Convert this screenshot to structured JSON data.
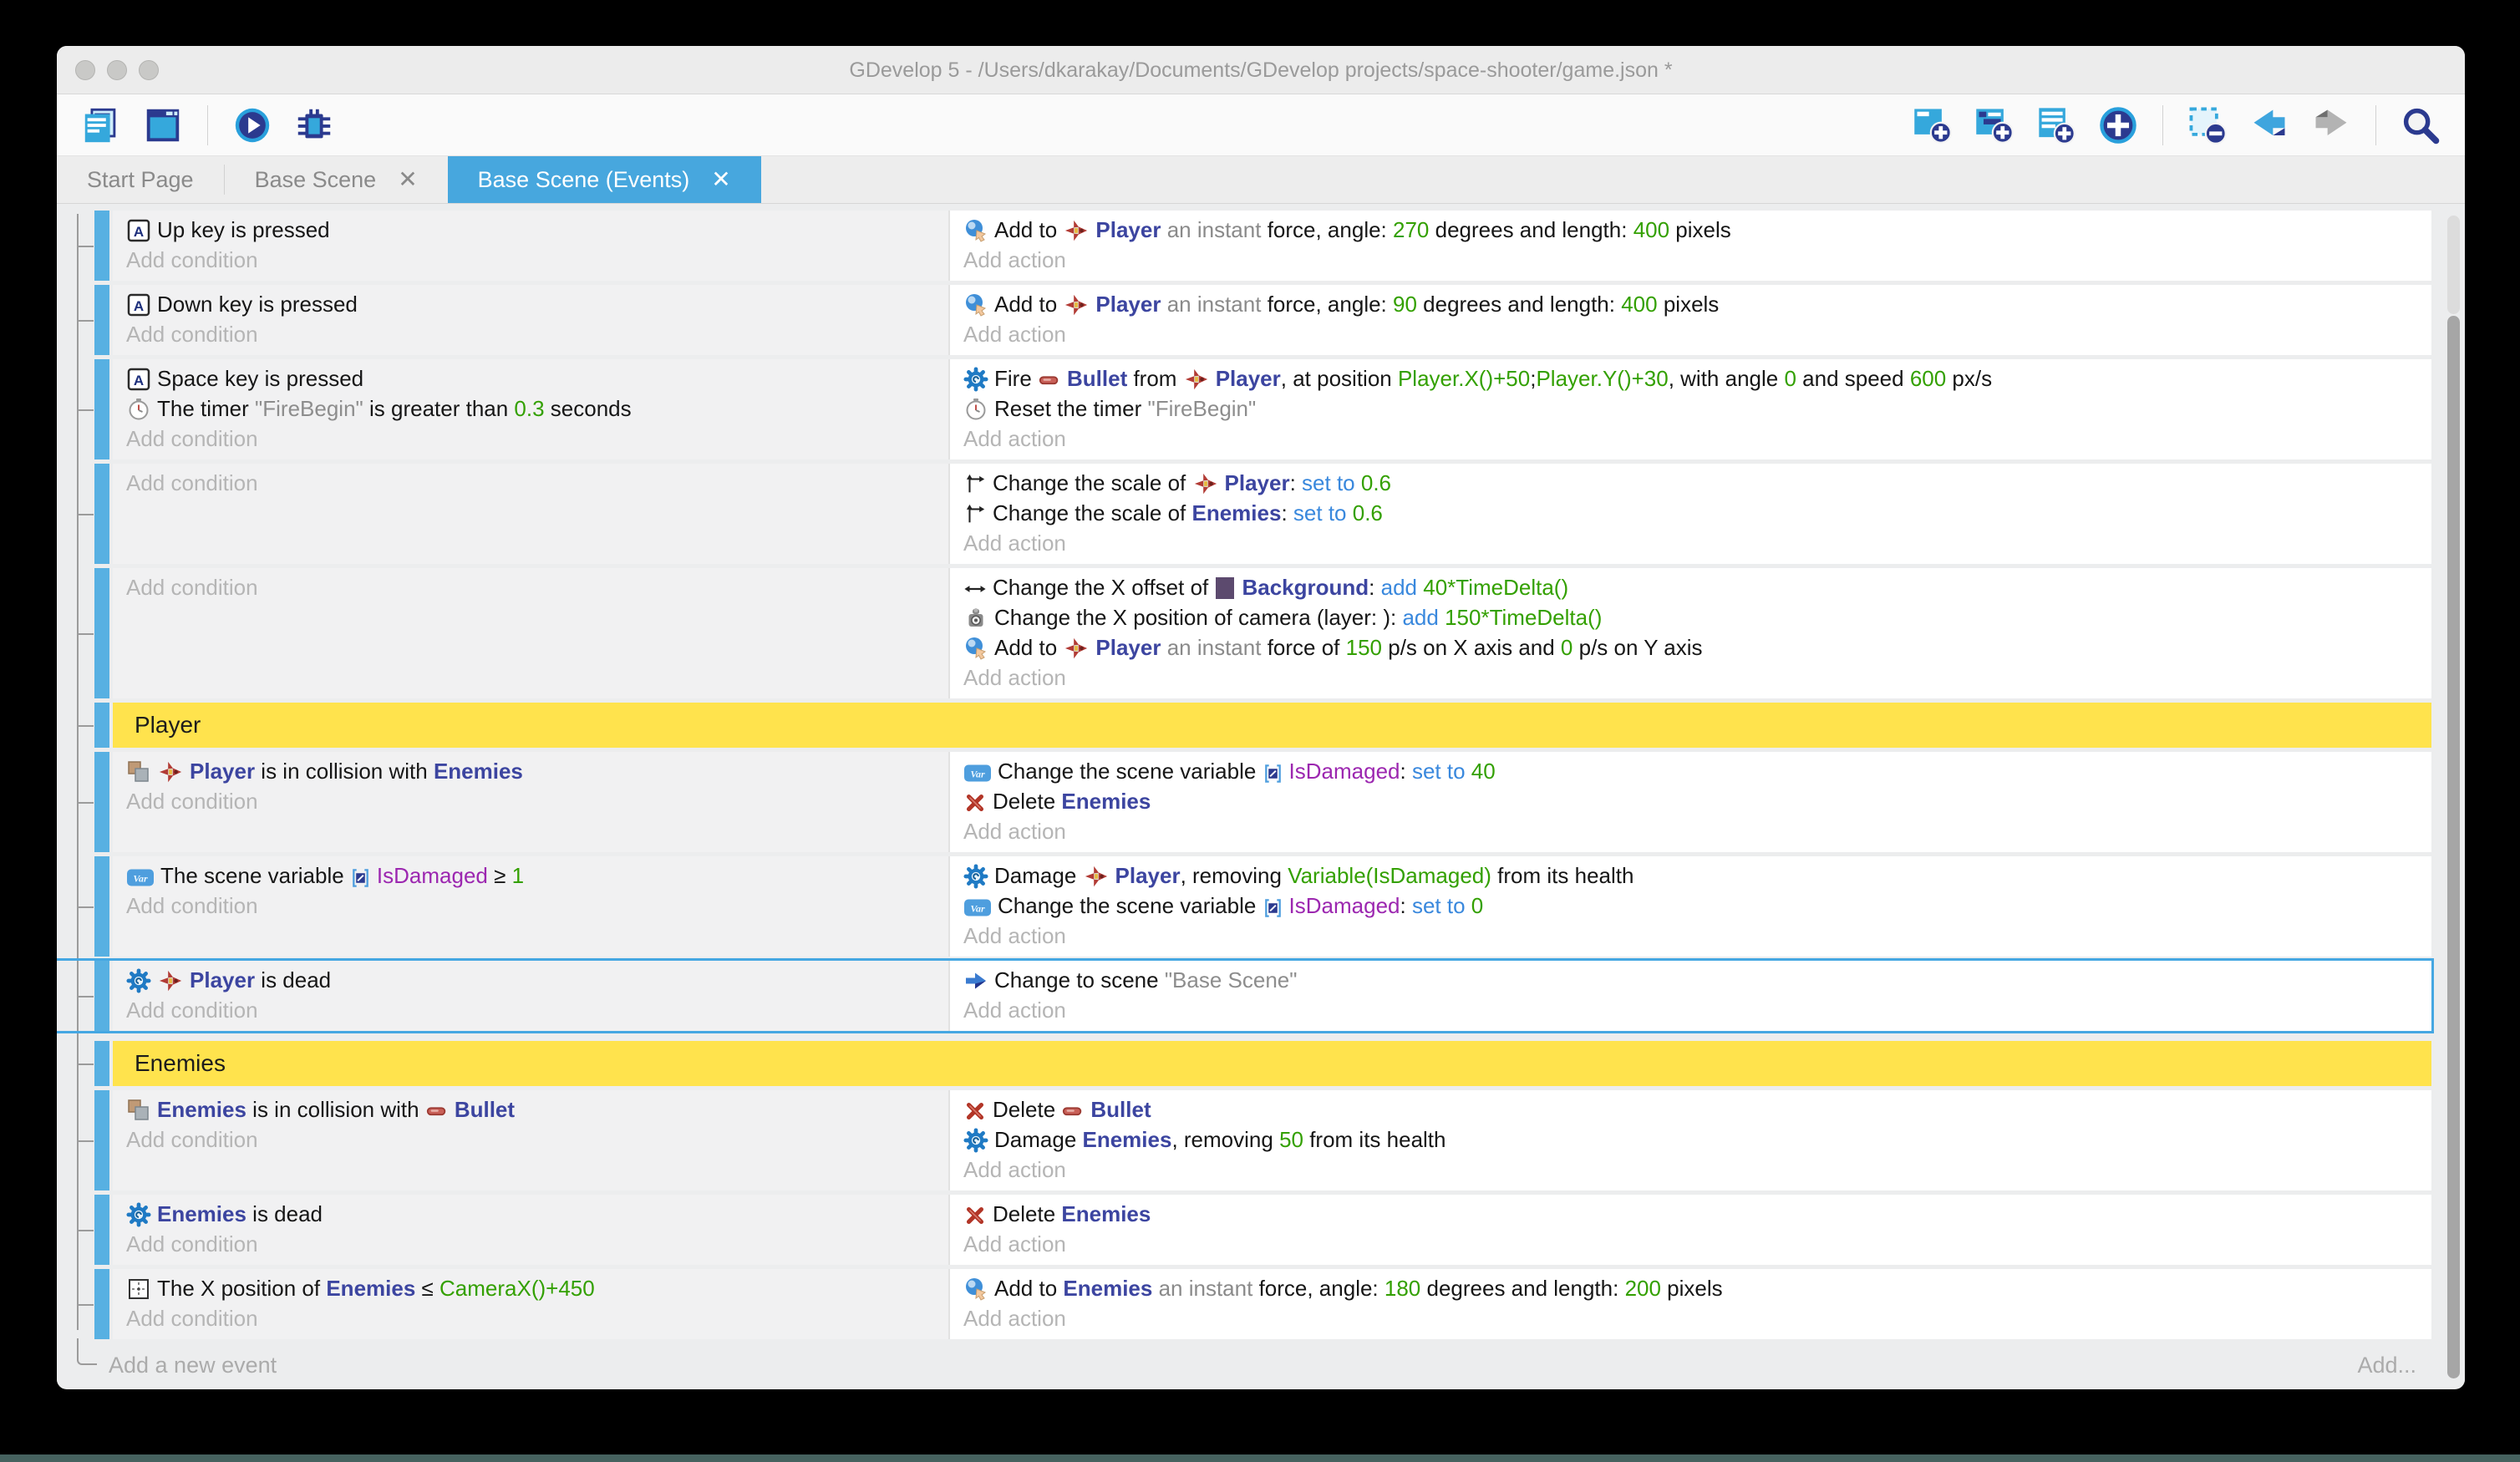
{
  "colors": {
    "accent": "#47a7de",
    "bar": "#57b0e2",
    "selection": "#45a7e2",
    "group": "#ffe34d",
    "condbg": "#f1f1f2",
    "actbg": "#ffffff",
    "sheetbg": "#ecedee",
    "obj": "#3c45a0",
    "num": "#33a000",
    "op": "#3988dd",
    "varc": "#9c27b0",
    "strc": "#8d8d8d",
    "grayc": "#8a8a8a",
    "ph": "#b5b5b5",
    "tree": "#9b9b9b"
  },
  "window": {
    "title": "GDevelop 5 - /Users/dkarakay/Documents/GDevelop projects/space-shooter/game.json *",
    "controls": [
      "close",
      "minimize",
      "zoom"
    ]
  },
  "toolbar": {
    "left": [
      "project-manager",
      "scene-editor",
      "|",
      "preview",
      "debug"
    ],
    "right": [
      "add-event",
      "add-subevent",
      "add-comment",
      "add-circle",
      "|",
      "delete-selection",
      "undo",
      "redo",
      "|",
      "search"
    ]
  },
  "tabs": [
    {
      "label": "Start Page",
      "active": false,
      "close": false
    },
    {
      "label": "Base Scene",
      "active": false,
      "close": true
    },
    {
      "label": "Base Scene (Events)",
      "active": true,
      "close": true
    }
  ],
  "labels": {
    "add_condition": "Add condition",
    "add_action": "Add action"
  },
  "footer": {
    "add_new_event": "Add a new event",
    "add_more": "Add..."
  },
  "events": [
    {
      "type": "event",
      "conditions": [
        [
          {
            "i": "keyboard"
          },
          {
            "t": "x",
            "v": "Up key is pressed"
          }
        ]
      ],
      "actions": [
        [
          {
            "i": "force"
          },
          {
            "t": "x",
            "v": "Add to "
          },
          {
            "i": "player-ship"
          },
          {
            "t": "o",
            "v": "Player"
          },
          {
            "t": "g",
            "v": " an instant "
          },
          {
            "t": "x",
            "v": "force, angle: "
          },
          {
            "t": "n",
            "v": "270"
          },
          {
            "t": "x",
            "v": " degrees and length: "
          },
          {
            "t": "n",
            "v": "400"
          },
          {
            "t": "x",
            "v": " pixels"
          }
        ]
      ]
    },
    {
      "type": "event",
      "conditions": [
        [
          {
            "i": "keyboard"
          },
          {
            "t": "x",
            "v": "Down key is pressed"
          }
        ]
      ],
      "actions": [
        [
          {
            "i": "force"
          },
          {
            "t": "x",
            "v": "Add to "
          },
          {
            "i": "player-ship"
          },
          {
            "t": "o",
            "v": "Player"
          },
          {
            "t": "g",
            "v": " an instant "
          },
          {
            "t": "x",
            "v": "force, angle: "
          },
          {
            "t": "n",
            "v": "90"
          },
          {
            "t": "x",
            "v": " degrees and length: "
          },
          {
            "t": "n",
            "v": "400"
          },
          {
            "t": "x",
            "v": " pixels"
          }
        ]
      ]
    },
    {
      "type": "event",
      "conditions": [
        [
          {
            "i": "keyboard"
          },
          {
            "t": "x",
            "v": "Space key is pressed"
          }
        ],
        [
          {
            "i": "timer"
          },
          {
            "t": "x",
            "v": "The timer "
          },
          {
            "t": "s",
            "v": "\"FireBegin\""
          },
          {
            "t": "x",
            "v": " is greater than "
          },
          {
            "t": "n",
            "v": "0.3"
          },
          {
            "t": "x",
            "v": " seconds"
          }
        ]
      ],
      "actions": [
        [
          {
            "i": "health-gear"
          },
          {
            "t": "x",
            "v": "Fire "
          },
          {
            "i": "bullet"
          },
          {
            "t": "o",
            "v": "Bullet"
          },
          {
            "t": "x",
            "v": " from "
          },
          {
            "i": "player-ship"
          },
          {
            "t": "o",
            "v": "Player"
          },
          {
            "t": "x",
            "v": ", at position "
          },
          {
            "t": "n",
            "v": "Player.X()+50"
          },
          {
            "t": "x",
            "v": ";"
          },
          {
            "t": "n",
            "v": "Player.Y()+30"
          },
          {
            "t": "x",
            "v": ", with angle "
          },
          {
            "t": "n",
            "v": "0"
          },
          {
            "t": "x",
            "v": " and speed "
          },
          {
            "t": "n",
            "v": "600"
          },
          {
            "t": "x",
            "v": " px/s"
          }
        ],
        [
          {
            "i": "timer"
          },
          {
            "t": "x",
            "v": "Reset the timer "
          },
          {
            "t": "s",
            "v": "\"FireBegin\""
          }
        ]
      ]
    },
    {
      "type": "event",
      "conditions": [],
      "actions": [
        [
          {
            "i": "scale"
          },
          {
            "t": "x",
            "v": "Change the scale of "
          },
          {
            "i": "player-ship"
          },
          {
            "t": "o",
            "v": "Player"
          },
          {
            "t": "x",
            "v": ": "
          },
          {
            "t": "b",
            "v": "set to"
          },
          {
            "t": "x",
            "v": " "
          },
          {
            "t": "n",
            "v": "0.6"
          }
        ],
        [
          {
            "i": "scale"
          },
          {
            "t": "x",
            "v": "Change the scale of "
          },
          {
            "t": "o",
            "v": "Enemies"
          },
          {
            "t": "x",
            "v": ": "
          },
          {
            "t": "b",
            "v": "set to"
          },
          {
            "t": "x",
            "v": " "
          },
          {
            "t": "n",
            "v": "0.6"
          }
        ]
      ]
    },
    {
      "type": "event",
      "conditions": [],
      "actions": [
        [
          {
            "i": "x-offset"
          },
          {
            "t": "x",
            "v": "Change the X offset of "
          },
          {
            "i": "background-object"
          },
          {
            "t": "o",
            "v": "Background"
          },
          {
            "t": "x",
            "v": ": "
          },
          {
            "t": "b",
            "v": "add"
          },
          {
            "t": "x",
            "v": " "
          },
          {
            "t": "n",
            "v": "40*TimeDelta()"
          }
        ],
        [
          {
            "i": "camera"
          },
          {
            "t": "x",
            "v": "Change the X position of camera (layer: ): "
          },
          {
            "t": "b",
            "v": "add"
          },
          {
            "t": "x",
            "v": " "
          },
          {
            "t": "n",
            "v": "150*TimeDelta()"
          }
        ],
        [
          {
            "i": "force"
          },
          {
            "t": "x",
            "v": "Add to "
          },
          {
            "i": "player-ship"
          },
          {
            "t": "o",
            "v": "Player"
          },
          {
            "t": "g",
            "v": " an instant "
          },
          {
            "t": "x",
            "v": "force of "
          },
          {
            "t": "n",
            "v": "150"
          },
          {
            "t": "x",
            "v": " p/s on X axis and "
          },
          {
            "t": "n",
            "v": "0"
          },
          {
            "t": "x",
            "v": " p/s on Y axis"
          }
        ]
      ]
    },
    {
      "type": "group",
      "label": "Player"
    },
    {
      "type": "event",
      "conditions": [
        [
          {
            "i": "collision"
          },
          {
            "i": "player-ship"
          },
          {
            "t": "o",
            "v": "Player"
          },
          {
            "t": "x",
            "v": " is in collision with "
          },
          {
            "t": "o",
            "v": "Enemies"
          }
        ]
      ],
      "actions": [
        [
          {
            "i": "variable"
          },
          {
            "t": "x",
            "v": "Change the scene variable "
          },
          {
            "i": "variable-badge"
          },
          {
            "t": "p",
            "v": "IsDamaged"
          },
          {
            "t": "x",
            "v": ": "
          },
          {
            "t": "b",
            "v": "set to"
          },
          {
            "t": "x",
            "v": " "
          },
          {
            "t": "n",
            "v": "40"
          }
        ],
        [
          {
            "i": "delete"
          },
          {
            "t": "x",
            "v": "Delete "
          },
          {
            "t": "o",
            "v": "Enemies"
          }
        ]
      ]
    },
    {
      "type": "event",
      "conditions": [
        [
          {
            "i": "variable"
          },
          {
            "t": "x",
            "v": "The scene variable "
          },
          {
            "i": "variable-badge"
          },
          {
            "t": "p",
            "v": "IsDamaged"
          },
          {
            "t": "x",
            "v": " ≥ "
          },
          {
            "t": "n",
            "v": "1"
          }
        ]
      ],
      "actions": [
        [
          {
            "i": "health-gear"
          },
          {
            "t": "x",
            "v": "Damage "
          },
          {
            "i": "player-ship"
          },
          {
            "t": "o",
            "v": "Player"
          },
          {
            "t": "x",
            "v": ", removing "
          },
          {
            "t": "n",
            "v": "Variable(IsDamaged)"
          },
          {
            "t": "x",
            "v": " from its health"
          }
        ],
        [
          {
            "i": "variable"
          },
          {
            "t": "x",
            "v": "Change the scene variable "
          },
          {
            "i": "variable-badge"
          },
          {
            "t": "p",
            "v": "IsDamaged"
          },
          {
            "t": "x",
            "v": ": "
          },
          {
            "t": "b",
            "v": "set to"
          },
          {
            "t": "x",
            "v": " "
          },
          {
            "t": "n",
            "v": "0"
          }
        ]
      ]
    },
    {
      "type": "event",
      "selected": true,
      "conditions": [
        [
          {
            "i": "health-gear"
          },
          {
            "i": "player-ship"
          },
          {
            "t": "o",
            "v": "Player"
          },
          {
            "t": "x",
            "v": " is dead"
          }
        ]
      ],
      "actions": [
        [
          {
            "i": "change-scene"
          },
          {
            "t": "x",
            "v": "Change to scene "
          },
          {
            "t": "s",
            "v": "\"Base Scene\""
          }
        ]
      ]
    },
    {
      "type": "group",
      "label": "Enemies"
    },
    {
      "type": "event",
      "conditions": [
        [
          {
            "i": "collision"
          },
          {
            "t": "o",
            "v": "Enemies"
          },
          {
            "t": "x",
            "v": " is in collision with "
          },
          {
            "i": "bullet"
          },
          {
            "t": "o",
            "v": "Bullet"
          }
        ]
      ],
      "actions": [
        [
          {
            "i": "delete"
          },
          {
            "t": "x",
            "v": "Delete "
          },
          {
            "i": "bullet"
          },
          {
            "t": "o",
            "v": "Bullet"
          }
        ],
        [
          {
            "i": "health-gear"
          },
          {
            "t": "x",
            "v": "Damage "
          },
          {
            "t": "o",
            "v": "Enemies"
          },
          {
            "t": "x",
            "v": ", removing "
          },
          {
            "t": "n",
            "v": "50"
          },
          {
            "t": "x",
            "v": " from its health"
          }
        ]
      ]
    },
    {
      "type": "event",
      "conditions": [
        [
          {
            "i": "health-gear"
          },
          {
            "t": "o",
            "v": "Enemies"
          },
          {
            "t": "x",
            "v": " is dead"
          }
        ]
      ],
      "actions": [
        [
          {
            "i": "delete"
          },
          {
            "t": "x",
            "v": "Delete "
          },
          {
            "t": "o",
            "v": "Enemies"
          }
        ]
      ]
    },
    {
      "type": "event",
      "conditions": [
        [
          {
            "i": "position"
          },
          {
            "t": "x",
            "v": "The X position of "
          },
          {
            "t": "o",
            "v": "Enemies"
          },
          {
            "t": "x",
            "v": " ≤ "
          },
          {
            "t": "n",
            "v": "CameraX()+450"
          }
        ]
      ],
      "actions": [
        [
          {
            "i": "force"
          },
          {
            "t": "x",
            "v": "Add to "
          },
          {
            "t": "o",
            "v": "Enemies"
          },
          {
            "t": "g",
            "v": " an instant "
          },
          {
            "t": "x",
            "v": "force, angle: "
          },
          {
            "t": "n",
            "v": "180"
          },
          {
            "t": "x",
            "v": " degrees and length: "
          },
          {
            "t": "n",
            "v": "200"
          },
          {
            "t": "x",
            "v": " pixels"
          }
        ]
      ]
    }
  ]
}
